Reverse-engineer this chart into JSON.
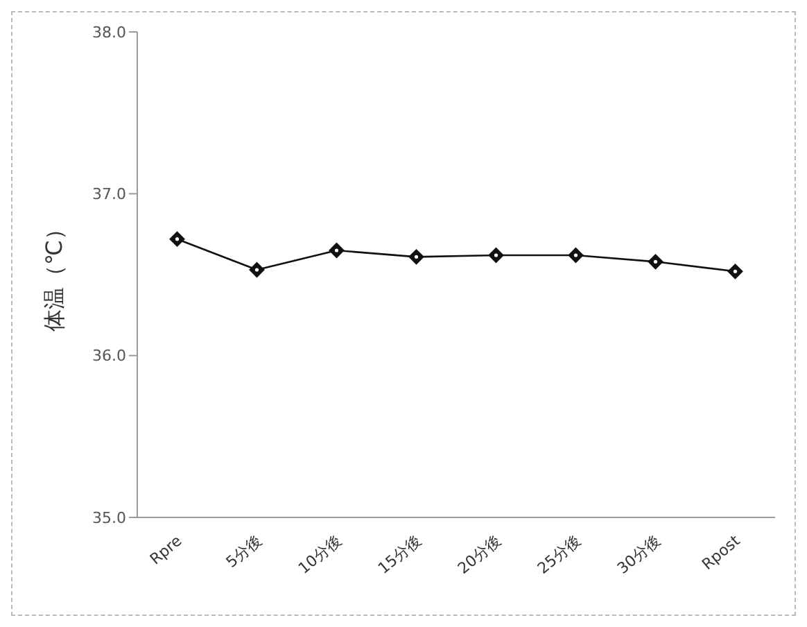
{
  "chart_data": {
    "type": "line",
    "ylabel": "体温（℃）",
    "categories": [
      "Rpre",
      "5分後",
      "10分後",
      "15分後",
      "20分後",
      "25分後",
      "30分後",
      "Rpost"
    ],
    "series": [
      {
        "color": "#111111",
        "values": [
          36.72,
          36.53,
          36.65,
          36.61,
          36.62,
          36.62,
          36.58,
          36.52
        ]
      }
    ],
    "ylim": [
      35,
      38
    ],
    "yticks": [
      {
        "value": 35,
        "label": "35.0"
      },
      {
        "value": 36,
        "label": "36.0"
      },
      {
        "value": 37,
        "label": "37.0"
      },
      {
        "value": 38,
        "label": "38.0"
      }
    ],
    "marker": "diamond",
    "line_style": "solid",
    "grid": false,
    "legend": false
  }
}
